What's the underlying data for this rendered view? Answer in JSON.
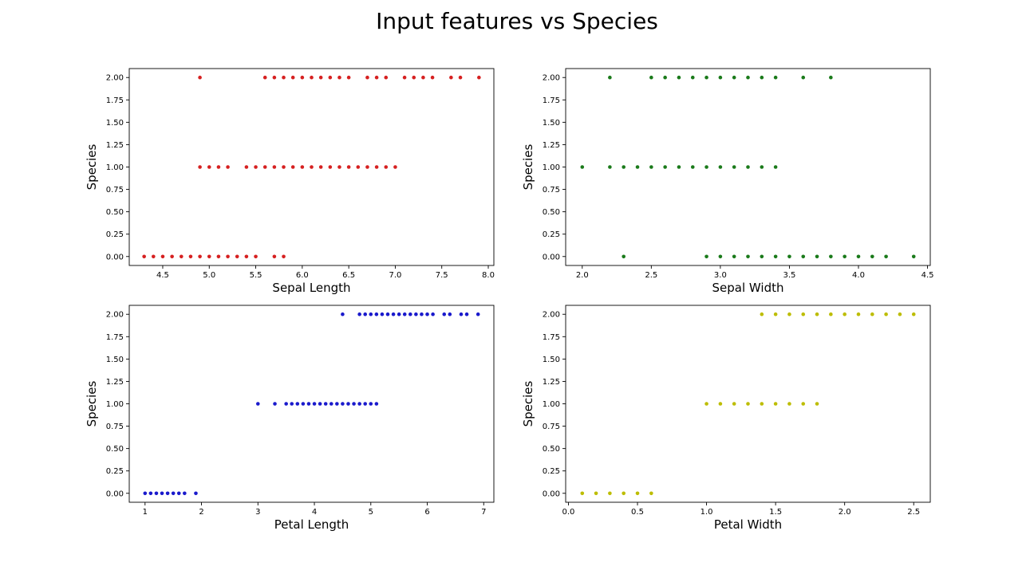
{
  "figure": {
    "title": "Input features vs Species"
  },
  "chart_data": [
    {
      "type": "scatter",
      "xlabel": "Sepal Length",
      "ylabel": "Species",
      "color": "#d62020",
      "xlim": [
        4.14,
        8.06
      ],
      "ylim": [
        -0.1,
        2.1
      ],
      "xticks": [
        "4.5",
        "5.0",
        "5.5",
        "6.0",
        "6.5",
        "7.0",
        "7.5",
        "8.0"
      ],
      "yticks": [
        "0.00",
        "0.25",
        "0.50",
        "0.75",
        "1.00",
        "1.25",
        "1.50",
        "1.75",
        "2.00"
      ],
      "points": [
        [
          4.3,
          0
        ],
        [
          4.4,
          0
        ],
        [
          4.5,
          0
        ],
        [
          4.6,
          0
        ],
        [
          4.7,
          0
        ],
        [
          4.8,
          0
        ],
        [
          4.9,
          0
        ],
        [
          5.0,
          0
        ],
        [
          5.1,
          0
        ],
        [
          5.2,
          0
        ],
        [
          5.3,
          0
        ],
        [
          5.4,
          0
        ],
        [
          5.5,
          0
        ],
        [
          5.7,
          0
        ],
        [
          5.8,
          0
        ],
        [
          4.9,
          1
        ],
        [
          5.0,
          1
        ],
        [
          5.1,
          1
        ],
        [
          5.2,
          1
        ],
        [
          5.4,
          1
        ],
        [
          5.5,
          1
        ],
        [
          5.6,
          1
        ],
        [
          5.7,
          1
        ],
        [
          5.8,
          1
        ],
        [
          5.9,
          1
        ],
        [
          6.0,
          1
        ],
        [
          6.1,
          1
        ],
        [
          6.2,
          1
        ],
        [
          6.3,
          1
        ],
        [
          6.4,
          1
        ],
        [
          6.5,
          1
        ],
        [
          6.6,
          1
        ],
        [
          6.7,
          1
        ],
        [
          6.8,
          1
        ],
        [
          6.9,
          1
        ],
        [
          7.0,
          1
        ],
        [
          4.9,
          2
        ],
        [
          5.6,
          2
        ],
        [
          5.7,
          2
        ],
        [
          5.8,
          2
        ],
        [
          5.9,
          2
        ],
        [
          6.0,
          2
        ],
        [
          6.1,
          2
        ],
        [
          6.2,
          2
        ],
        [
          6.3,
          2
        ],
        [
          6.4,
          2
        ],
        [
          6.5,
          2
        ],
        [
          6.7,
          2
        ],
        [
          6.8,
          2
        ],
        [
          6.9,
          2
        ],
        [
          7.1,
          2
        ],
        [
          7.2,
          2
        ],
        [
          7.3,
          2
        ],
        [
          7.4,
          2
        ],
        [
          7.6,
          2
        ],
        [
          7.7,
          2
        ],
        [
          7.9,
          2
        ]
      ]
    },
    {
      "type": "scatter",
      "xlabel": "Sepal Width",
      "ylabel": "Species",
      "color": "#1a7a1a",
      "xlim": [
        1.88,
        4.52
      ],
      "ylim": [
        -0.1,
        2.1
      ],
      "xticks": [
        "2.0",
        "2.5",
        "3.0",
        "3.5",
        "4.0",
        "4.5"
      ],
      "yticks": [
        "0.00",
        "0.25",
        "0.50",
        "0.75",
        "1.00",
        "1.25",
        "1.50",
        "1.75",
        "2.00"
      ],
      "points": [
        [
          2.3,
          0
        ],
        [
          2.9,
          0
        ],
        [
          3.0,
          0
        ],
        [
          3.1,
          0
        ],
        [
          3.2,
          0
        ],
        [
          3.3,
          0
        ],
        [
          3.4,
          0
        ],
        [
          3.5,
          0
        ],
        [
          3.6,
          0
        ],
        [
          3.7,
          0
        ],
        [
          3.8,
          0
        ],
        [
          3.9,
          0
        ],
        [
          4.0,
          0
        ],
        [
          4.1,
          0
        ],
        [
          4.2,
          0
        ],
        [
          4.4,
          0
        ],
        [
          2.0,
          1
        ],
        [
          2.2,
          1
        ],
        [
          2.3,
          1
        ],
        [
          2.4,
          1
        ],
        [
          2.5,
          1
        ],
        [
          2.6,
          1
        ],
        [
          2.7,
          1
        ],
        [
          2.8,
          1
        ],
        [
          2.9,
          1
        ],
        [
          3.0,
          1
        ],
        [
          3.1,
          1
        ],
        [
          3.2,
          1
        ],
        [
          3.3,
          1
        ],
        [
          3.4,
          1
        ],
        [
          2.2,
          2
        ],
        [
          2.5,
          2
        ],
        [
          2.6,
          2
        ],
        [
          2.7,
          2
        ],
        [
          2.8,
          2
        ],
        [
          2.9,
          2
        ],
        [
          3.0,
          2
        ],
        [
          3.1,
          2
        ],
        [
          3.2,
          2
        ],
        [
          3.3,
          2
        ],
        [
          3.4,
          2
        ],
        [
          3.6,
          2
        ],
        [
          3.8,
          2
        ]
      ]
    },
    {
      "type": "scatter",
      "xlabel": "Petal Length",
      "ylabel": "Species",
      "color": "#1a1acc",
      "xlim": [
        0.72,
        7.18
      ],
      "ylim": [
        -0.1,
        2.1
      ],
      "xticks": [
        "1",
        "2",
        "3",
        "4",
        "5",
        "6",
        "7"
      ],
      "yticks": [
        "0.00",
        "0.25",
        "0.50",
        "0.75",
        "1.00",
        "1.25",
        "1.50",
        "1.75",
        "2.00"
      ],
      "points": [
        [
          1.0,
          0
        ],
        [
          1.1,
          0
        ],
        [
          1.2,
          0
        ],
        [
          1.3,
          0
        ],
        [
          1.4,
          0
        ],
        [
          1.5,
          0
        ],
        [
          1.6,
          0
        ],
        [
          1.7,
          0
        ],
        [
          1.9,
          0
        ],
        [
          3.0,
          1
        ],
        [
          3.3,
          1
        ],
        [
          3.5,
          1
        ],
        [
          3.6,
          1
        ],
        [
          3.7,
          1
        ],
        [
          3.8,
          1
        ],
        [
          3.9,
          1
        ],
        [
          4.0,
          1
        ],
        [
          4.1,
          1
        ],
        [
          4.2,
          1
        ],
        [
          4.3,
          1
        ],
        [
          4.4,
          1
        ],
        [
          4.5,
          1
        ],
        [
          4.6,
          1
        ],
        [
          4.7,
          1
        ],
        [
          4.8,
          1
        ],
        [
          4.9,
          1
        ],
        [
          5.0,
          1
        ],
        [
          5.1,
          1
        ],
        [
          4.5,
          2
        ],
        [
          4.8,
          2
        ],
        [
          4.9,
          2
        ],
        [
          5.0,
          2
        ],
        [
          5.1,
          2
        ],
        [
          5.2,
          2
        ],
        [
          5.3,
          2
        ],
        [
          5.4,
          2
        ],
        [
          5.5,
          2
        ],
        [
          5.6,
          2
        ],
        [
          5.7,
          2
        ],
        [
          5.8,
          2
        ],
        [
          5.9,
          2
        ],
        [
          6.0,
          2
        ],
        [
          6.1,
          2
        ],
        [
          6.3,
          2
        ],
        [
          6.4,
          2
        ],
        [
          6.6,
          2
        ],
        [
          6.7,
          2
        ],
        [
          6.9,
          2
        ]
      ]
    },
    {
      "type": "scatter",
      "xlabel": "Petal Width",
      "ylabel": "Species",
      "color": "#bdbd00",
      "xlim": [
        -0.02,
        2.62
      ],
      "ylim": [
        -0.1,
        2.1
      ],
      "xticks": [
        "0.0",
        "0.5",
        "1.0",
        "1.5",
        "2.0",
        "2.5"
      ],
      "yticks": [
        "0.00",
        "0.25",
        "0.50",
        "0.75",
        "1.00",
        "1.25",
        "1.50",
        "1.75",
        "2.00"
      ],
      "points": [
        [
          0.1,
          0
        ],
        [
          0.2,
          0
        ],
        [
          0.3,
          0
        ],
        [
          0.4,
          0
        ],
        [
          0.5,
          0
        ],
        [
          0.6,
          0
        ],
        [
          1.0,
          1
        ],
        [
          1.1,
          1
        ],
        [
          1.2,
          1
        ],
        [
          1.3,
          1
        ],
        [
          1.4,
          1
        ],
        [
          1.5,
          1
        ],
        [
          1.6,
          1
        ],
        [
          1.7,
          1
        ],
        [
          1.8,
          1
        ],
        [
          1.4,
          2
        ],
        [
          1.5,
          2
        ],
        [
          1.6,
          2
        ],
        [
          1.7,
          2
        ],
        [
          1.8,
          2
        ],
        [
          1.9,
          2
        ],
        [
          2.0,
          2
        ],
        [
          2.1,
          2
        ],
        [
          2.2,
          2
        ],
        [
          2.3,
          2
        ],
        [
          2.4,
          2
        ],
        [
          2.5,
          2
        ]
      ]
    }
  ]
}
